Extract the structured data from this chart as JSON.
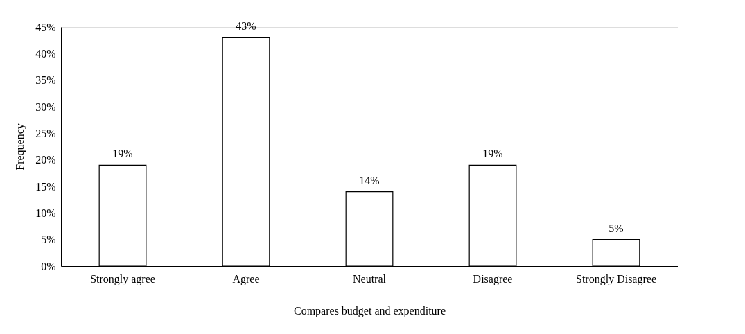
{
  "chart_data": {
    "type": "bar",
    "xlabel": "Compares budget and expenditure",
    "ylabel": "Frequency",
    "categories": [
      "Strongly agree",
      "Agree",
      "Neutral",
      "Disagree",
      "Strongly Disagree"
    ],
    "values": [
      19,
      43,
      14,
      19,
      5
    ],
    "value_labels": [
      "19%",
      "43%",
      "14%",
      "19%",
      "5%"
    ],
    "color": "#ffffff",
    "grid": false,
    "ylim": [
      0,
      45
    ],
    "yticks": [
      {
        "value": 0,
        "label": "0%"
      },
      {
        "value": 5,
        "label": "5%"
      },
      {
        "value": 10,
        "label": "10%"
      },
      {
        "value": 15,
        "label": "15%"
      },
      {
        "value": 20,
        "label": "20%"
      },
      {
        "value": 25,
        "label": "25%"
      },
      {
        "value": 30,
        "label": "30%"
      },
      {
        "value": 35,
        "label": "35%"
      },
      {
        "value": 40,
        "label": "40%"
      },
      {
        "value": 45,
        "label": "45%"
      }
    ]
  }
}
